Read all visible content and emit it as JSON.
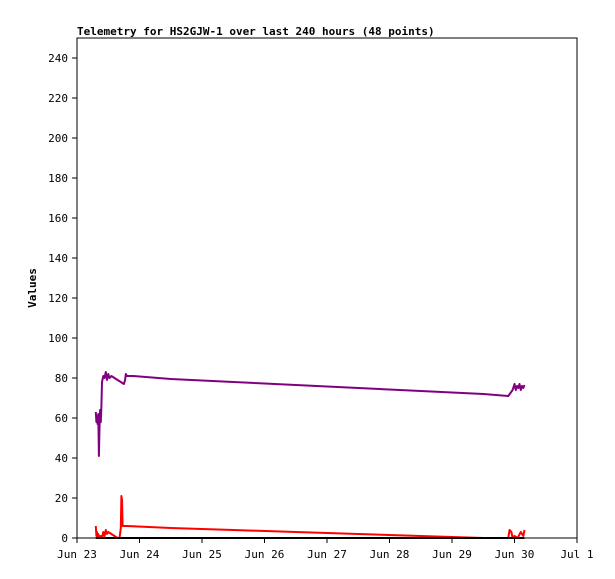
{
  "chart_data": {
    "type": "line",
    "title": "Telemetry for HS2GJW-1 over last 240 hours (48 points)",
    "xlabel": "",
    "ylabel": "Values",
    "ylim": [
      0,
      250
    ],
    "yticks": [
      0,
      20,
      40,
      60,
      80,
      100,
      120,
      140,
      160,
      180,
      200,
      220,
      240
    ],
    "xlim": [
      "Jun 23 00:00",
      "Jul 1 00:00"
    ],
    "xticks": [
      {
        "label": "Jun 23",
        "day": 0
      },
      {
        "label": "Jun 24",
        "day": 1
      },
      {
        "label": "Jun 25",
        "day": 2
      },
      {
        "label": "Jun 26",
        "day": 3
      },
      {
        "label": "Jun 27",
        "day": 4
      },
      {
        "label": "Jun 28",
        "day": 5
      },
      {
        "label": "Jun 29",
        "day": 6
      },
      {
        "label": "Jun 30",
        "day": 7
      },
      {
        "label": "Jul 1",
        "day": 8
      }
    ],
    "grid": false,
    "series": [
      {
        "color": "#800080",
        "points": [
          [
            0.3,
            63
          ],
          [
            0.31,
            58
          ],
          [
            0.32,
            61
          ],
          [
            0.33,
            57
          ],
          [
            0.34,
            62
          ],
          [
            0.35,
            41
          ],
          [
            0.36,
            55
          ],
          [
            0.37,
            64
          ],
          [
            0.38,
            58
          ],
          [
            0.39,
            66
          ],
          [
            0.4,
            78
          ],
          [
            0.42,
            81
          ],
          [
            0.44,
            80
          ],
          [
            0.46,
            83
          ],
          [
            0.48,
            79
          ],
          [
            0.5,
            82
          ],
          [
            0.52,
            80
          ],
          [
            0.55,
            81
          ],
          [
            0.6,
            80
          ],
          [
            0.65,
            79
          ],
          [
            0.7,
            78
          ],
          [
            0.75,
            77
          ],
          [
            0.77,
            79
          ],
          [
            0.78,
            82
          ],
          [
            0.8,
            81
          ],
          [
            0.9,
            81
          ],
          [
            1.5,
            79.5
          ],
          [
            2.5,
            78
          ],
          [
            3.5,
            76.5
          ],
          [
            4.5,
            75
          ],
          [
            5.5,
            73.5
          ],
          [
            6.5,
            72
          ],
          [
            6.9,
            71
          ],
          [
            6.97,
            74
          ],
          [
            7.0,
            77
          ],
          [
            7.02,
            74
          ],
          [
            7.04,
            76
          ],
          [
            7.06,
            75
          ],
          [
            7.08,
            77
          ],
          [
            7.1,
            74
          ],
          [
            7.12,
            76
          ],
          [
            7.14,
            75
          ],
          [
            7.16,
            76.5
          ]
        ]
      },
      {
        "color": "#ff0000",
        "points": [
          [
            0.3,
            6
          ],
          [
            0.31,
            1
          ],
          [
            0.32,
            3
          ],
          [
            0.33,
            0
          ],
          [
            0.34,
            2
          ],
          [
            0.35,
            1
          ],
          [
            0.37,
            0
          ],
          [
            0.38,
            1
          ],
          [
            0.4,
            0
          ],
          [
            0.42,
            3
          ],
          [
            0.44,
            1
          ],
          [
            0.46,
            4
          ],
          [
            0.48,
            2
          ],
          [
            0.5,
            3
          ],
          [
            0.55,
            2
          ],
          [
            0.6,
            1
          ],
          [
            0.65,
            0
          ],
          [
            0.68,
            0
          ],
          [
            0.7,
            5
          ],
          [
            0.71,
            21
          ],
          [
            0.72,
            19
          ],
          [
            0.73,
            6
          ],
          [
            0.8,
            6
          ],
          [
            1.5,
            5
          ],
          [
            2.5,
            4
          ],
          [
            3.5,
            3
          ],
          [
            4.5,
            2
          ],
          [
            5.5,
            1
          ],
          [
            6.0,
            0.5
          ],
          [
            6.5,
            0
          ],
          [
            6.9,
            0
          ],
          [
            6.92,
            4
          ],
          [
            6.95,
            3
          ],
          [
            6.97,
            0
          ],
          [
            7.0,
            1
          ],
          [
            7.05,
            0
          ],
          [
            7.1,
            3
          ],
          [
            7.14,
            1
          ],
          [
            7.16,
            4
          ]
        ]
      },
      {
        "color": "#000000",
        "points": [
          [
            0.3,
            0
          ],
          [
            7.16,
            0
          ]
        ]
      }
    ]
  }
}
